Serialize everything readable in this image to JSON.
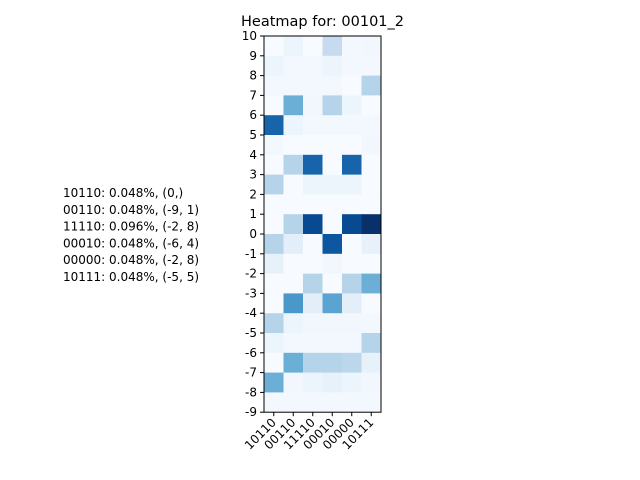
{
  "chart_data": {
    "type": "heatmap",
    "title": "Heatmap for: 00101_2",
    "colormap": "Blues",
    "x_categories": [
      "10110",
      "00110",
      "11110",
      "00010",
      "00000",
      "10111"
    ],
    "y_ticks": [
      10,
      9,
      8,
      7,
      6,
      5,
      4,
      3,
      2,
      1,
      0,
      -1,
      -2,
      -3,
      -4,
      -5,
      -6,
      -7,
      -8,
      -9
    ],
    "y_range": [
      -9,
      10
    ],
    "rows_top_to_bottom": [
      [
        0.0,
        0.05,
        0.0,
        0.25,
        0.02,
        0.03
      ],
      [
        0.05,
        0.02,
        0.02,
        0.05,
        0.02,
        0.02
      ],
      [
        0.02,
        0.02,
        0.02,
        0.02,
        0.0,
        0.3
      ],
      [
        0.0,
        0.5,
        0.03,
        0.3,
        0.05,
        0.0
      ],
      [
        0.8,
        0.05,
        0.02,
        0.02,
        0.02,
        0.02
      ],
      [
        0.02,
        0.0,
        0.0,
        0.0,
        0.0,
        0.03
      ],
      [
        0.0,
        0.3,
        0.8,
        0.0,
        0.8,
        0.0
      ],
      [
        0.3,
        0.0,
        0.05,
        0.05,
        0.05,
        0.0
      ],
      [
        0.0,
        0.0,
        0.0,
        0.0,
        0.0,
        0.0
      ],
      [
        0.0,
        0.3,
        0.9,
        0.0,
        0.9,
        1.0
      ],
      [
        0.3,
        0.1,
        0.0,
        0.85,
        0.0,
        0.08
      ],
      [
        0.08,
        0.0,
        0.0,
        0.03,
        0.0,
        0.0
      ],
      [
        0.0,
        0.0,
        0.3,
        0.0,
        0.3,
        0.5
      ],
      [
        0.0,
        0.6,
        0.1,
        0.55,
        0.1,
        0.0
      ],
      [
        0.3,
        0.05,
        0.03,
        0.03,
        0.03,
        0.02
      ],
      [
        0.05,
        0.02,
        0.02,
        0.02,
        0.02,
        0.3
      ],
      [
        0.0,
        0.5,
        0.3,
        0.3,
        0.28,
        0.08
      ],
      [
        0.5,
        0.03,
        0.05,
        0.08,
        0.05,
        0.03
      ],
      [
        0.02,
        0.02,
        0.02,
        0.02,
        0.02,
        0.02
      ]
    ],
    "legend_lines": [
      "10110: 0.048%, (0,)",
      "00110: 0.048%, (-9, 1)",
      "11110: 0.096%, (-2, 8)",
      "00010: 0.048%, (-6, 4)",
      "00000: 0.048%, (-2, 8)",
      "10111: 0.048%, (-5, 5)"
    ]
  }
}
